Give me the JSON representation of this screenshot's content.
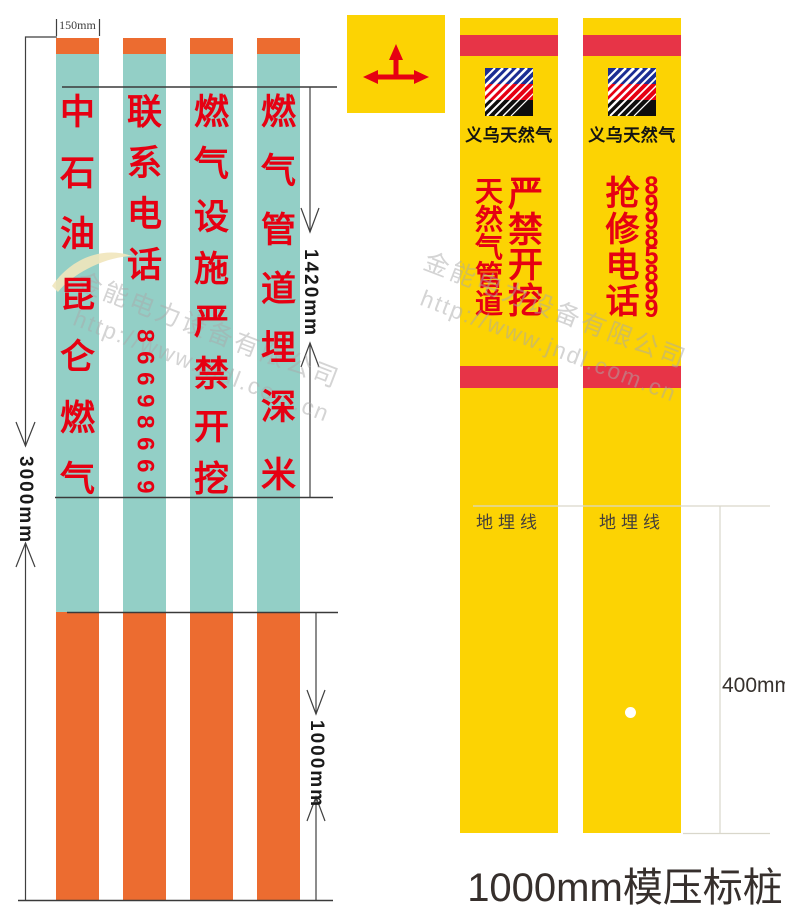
{
  "dimensions": {
    "post_width": "150mm",
    "total_length": "3000mm",
    "text_panel_length": "1420mm",
    "buried_length": "1000mm",
    "burial_depth_right": "400mm"
  },
  "footer_title": "1000mm模压标桩",
  "left_posts": [
    {
      "text": "中石油昆仑燃气"
    },
    {
      "text": "联系电话",
      "phone": "86698669"
    },
    {
      "text": "燃气设施严禁开挖"
    },
    {
      "text": "燃气管道埋深",
      "suffix": "米"
    }
  ],
  "right_group": {
    "brand": "义乌天然气",
    "posts": [
      {
        "left_column": "天然气管道",
        "right_column": "严禁开挖"
      },
      {
        "left_column": "抢修电话",
        "right_column": "89985899"
      }
    ],
    "burial_line_label": "地埋线"
  },
  "watermark": {
    "company": "金能电力设备有限公司",
    "url": "http://www.jndl.com.cn"
  },
  "colors": {
    "teal": "#93cfc6",
    "orange": "#ec6c30",
    "yellow": "#fcd303",
    "stripe-red": "#e73447",
    "text-red": "#e60012",
    "logo-blue": "#1b2d93",
    "title-color": "#362f2c"
  }
}
